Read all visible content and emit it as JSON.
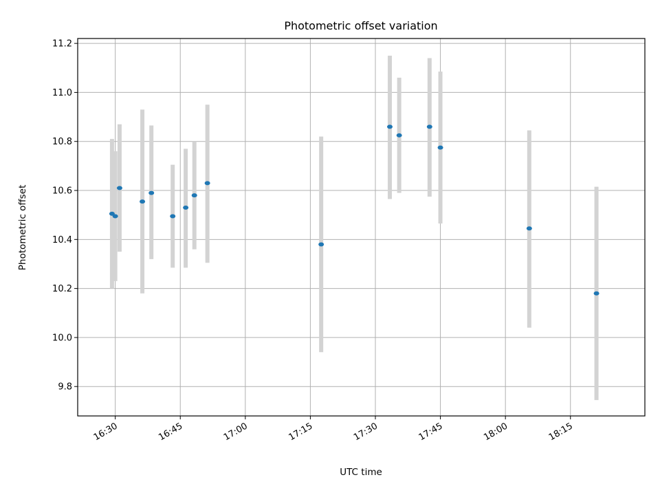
{
  "chart_data": {
    "type": "scatter",
    "title": "Photometric offset variation",
    "xlabel": "UTC time",
    "ylabel": "Photometric offset",
    "x_ticks": [
      "16:30",
      "16:45",
      "17:00",
      "17:15",
      "17:30",
      "17:45",
      "18:00",
      "18:15"
    ],
    "y_ticks": [
      "9.8",
      "10.0",
      "10.2",
      "10.4",
      "10.6",
      "10.8",
      "11.0",
      "11.2"
    ],
    "xlim": [
      "16:21:20",
      "18:32:10"
    ],
    "ylim": [
      9.68,
      11.22
    ],
    "grid": true,
    "marker_color": "#1f77b4",
    "errorbar_color": "#d3d3d3",
    "points": [
      {
        "x": "16:29:15",
        "y": 10.505,
        "low": 10.2,
        "high": 10.81
      },
      {
        "x": "16:30:00",
        "y": 10.495,
        "low": 10.23,
        "high": 10.76
      },
      {
        "x": "16:31:00",
        "y": 10.61,
        "low": 10.35,
        "high": 10.87
      },
      {
        "x": "16:36:15",
        "y": 10.555,
        "low": 10.18,
        "high": 10.93
      },
      {
        "x": "16:38:20",
        "y": 10.59,
        "low": 10.32,
        "high": 10.865
      },
      {
        "x": "16:43:15",
        "y": 10.495,
        "low": 10.285,
        "high": 10.705
      },
      {
        "x": "16:46:15",
        "y": 10.53,
        "low": 10.285,
        "high": 10.77
      },
      {
        "x": "16:48:15",
        "y": 10.58,
        "low": 10.36,
        "high": 10.8
      },
      {
        "x": "16:51:15",
        "y": 10.63,
        "low": 10.305,
        "high": 10.95
      },
      {
        "x": "17:17:30",
        "y": 10.38,
        "low": 9.94,
        "high": 10.82
      },
      {
        "x": "17:33:20",
        "y": 10.86,
        "low": 10.565,
        "high": 11.15
      },
      {
        "x": "17:35:30",
        "y": 10.825,
        "low": 10.59,
        "high": 11.06
      },
      {
        "x": "17:42:30",
        "y": 10.86,
        "low": 10.575,
        "high": 11.14
      },
      {
        "x": "17:45:00",
        "y": 10.775,
        "low": 10.465,
        "high": 11.085
      },
      {
        "x": "18:05:30",
        "y": 10.445,
        "low": 10.04,
        "high": 10.845
      },
      {
        "x": "18:21:00",
        "y": 10.18,
        "low": 9.745,
        "high": 10.615
      }
    ]
  }
}
